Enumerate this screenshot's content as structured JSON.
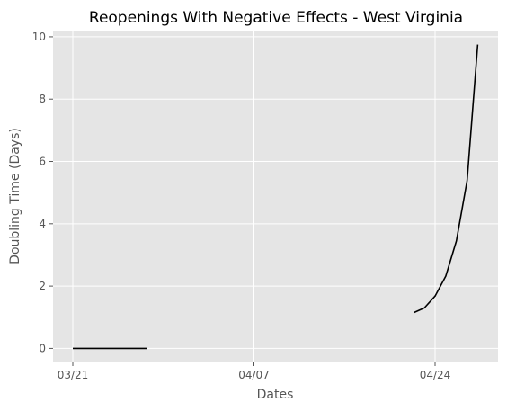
{
  "chart_data": {
    "type": "line",
    "title": "Reopenings With Negative Effects - West Virginia",
    "xlabel": "Dates",
    "ylabel": "Doubling Time (Days)",
    "x_ticks": [
      "03/21",
      "04/07",
      "04/24"
    ],
    "y_ticks": [
      0,
      2,
      4,
      6,
      8,
      10
    ],
    "ylim": [
      -0.45,
      10.2
    ],
    "grid": true,
    "background": "#e5e5e5",
    "grid_color": "#ffffff",
    "line_color": "#000000",
    "series": [
      {
        "segments": [
          {
            "x": [
              "03/21",
              "03/22",
              "03/23",
              "03/24",
              "03/25",
              "03/26",
              "03/27",
              "03/28"
            ],
            "y": [
              0,
              0,
              0,
              0,
              0,
              0,
              0,
              0
            ]
          },
          {
            "x": [
              "04/22",
              "04/23",
              "04/24",
              "04/25",
              "04/26",
              "04/27",
              "04/28"
            ],
            "y": [
              1.15,
              1.3,
              1.68,
              2.32,
              3.45,
              5.38,
              9.75
            ]
          }
        ]
      }
    ]
  }
}
